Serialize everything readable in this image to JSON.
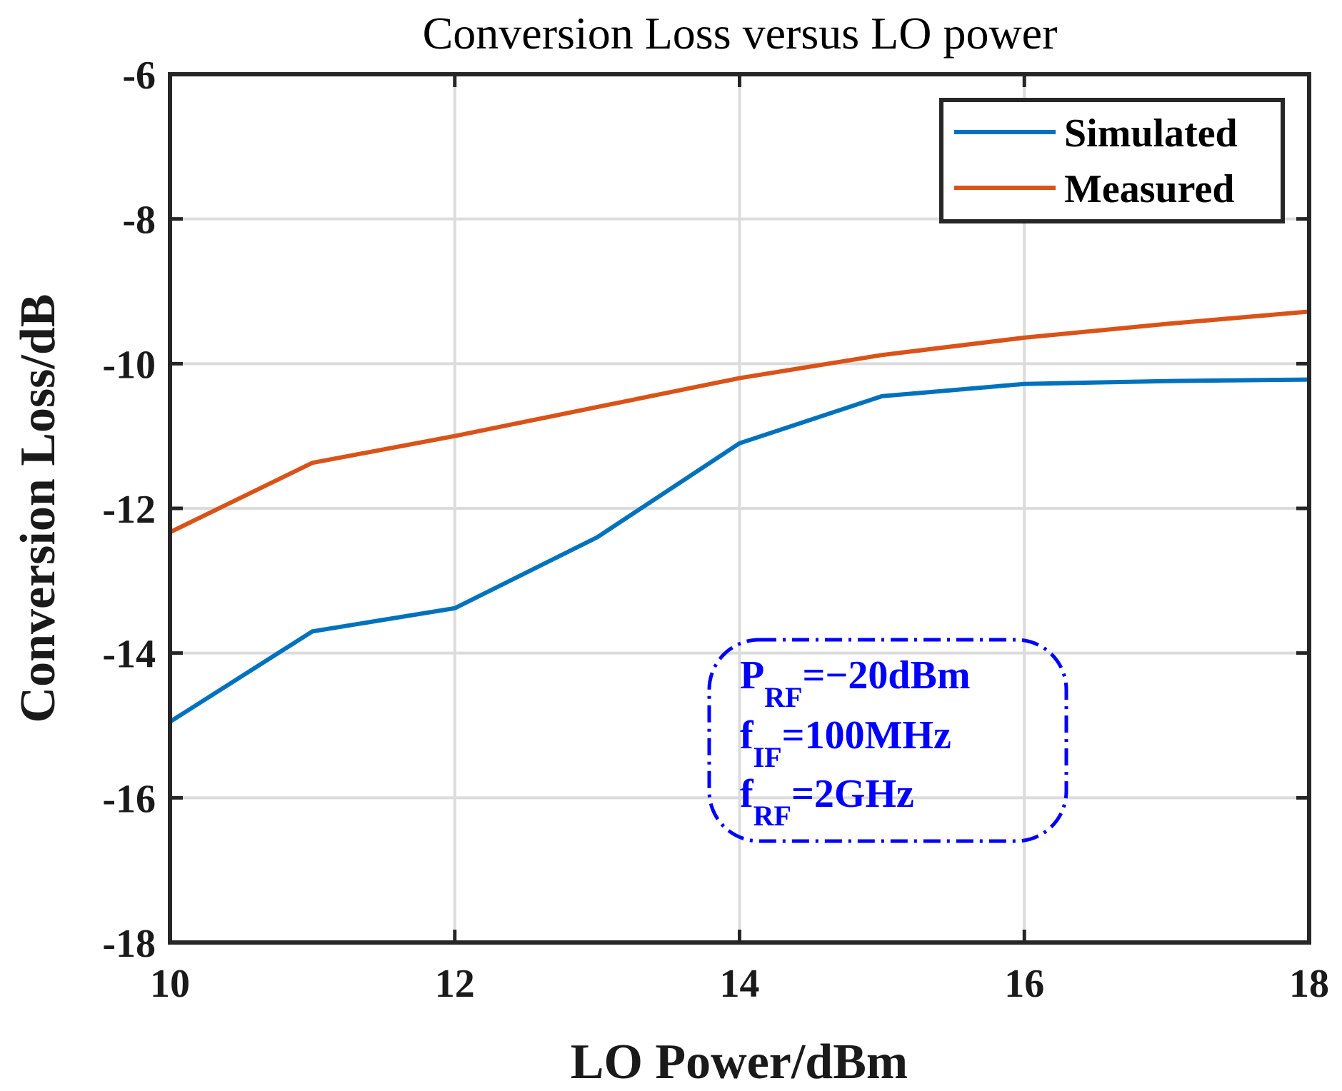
{
  "chart_data": {
    "type": "line",
    "title": "Conversion Loss versus LO power",
    "xlabel": "LO Power/dBm",
    "ylabel": "Conversion Loss/dB",
    "xlim": [
      10,
      18
    ],
    "ylim": [
      -18,
      -6
    ],
    "xticks": [
      "10",
      "12",
      "14",
      "16",
      "18"
    ],
    "yticks": [
      "-6",
      "-8",
      "-10",
      "-12",
      "-14",
      "-16",
      "-18"
    ],
    "grid": true,
    "legend_position": "top-right",
    "x": [
      10,
      11,
      12,
      13,
      14,
      15,
      16,
      17,
      18
    ],
    "series": [
      {
        "name": "Simulated",
        "color": "#0072bd",
        "x": [
          10,
          11,
          12,
          13,
          14,
          15,
          16,
          17,
          18
        ],
        "values": [
          -14.95,
          -13.7,
          -13.38,
          -12.4,
          -11.1,
          -10.45,
          -10.28,
          -10.24,
          -10.22
        ]
      },
      {
        "name": "Measured",
        "color": "#d95319",
        "x": [
          10,
          11,
          12,
          13,
          14,
          15,
          16,
          17,
          18
        ],
        "values": [
          -12.33,
          -11.37,
          -11.0,
          -10.6,
          -10.2,
          -9.88,
          -9.64,
          -9.45,
          -9.28
        ]
      }
    ],
    "annotation": {
      "color": "#0000ff",
      "lines": [
        {
          "main": "P",
          "sub": "RF",
          "rest": "=−20dBm"
        },
        {
          "main": "f",
          "sub": "IF",
          "rest": "=100MHz"
        },
        {
          "main": "f",
          "sub": "RF",
          "rest": "=2GHz"
        }
      ]
    }
  }
}
